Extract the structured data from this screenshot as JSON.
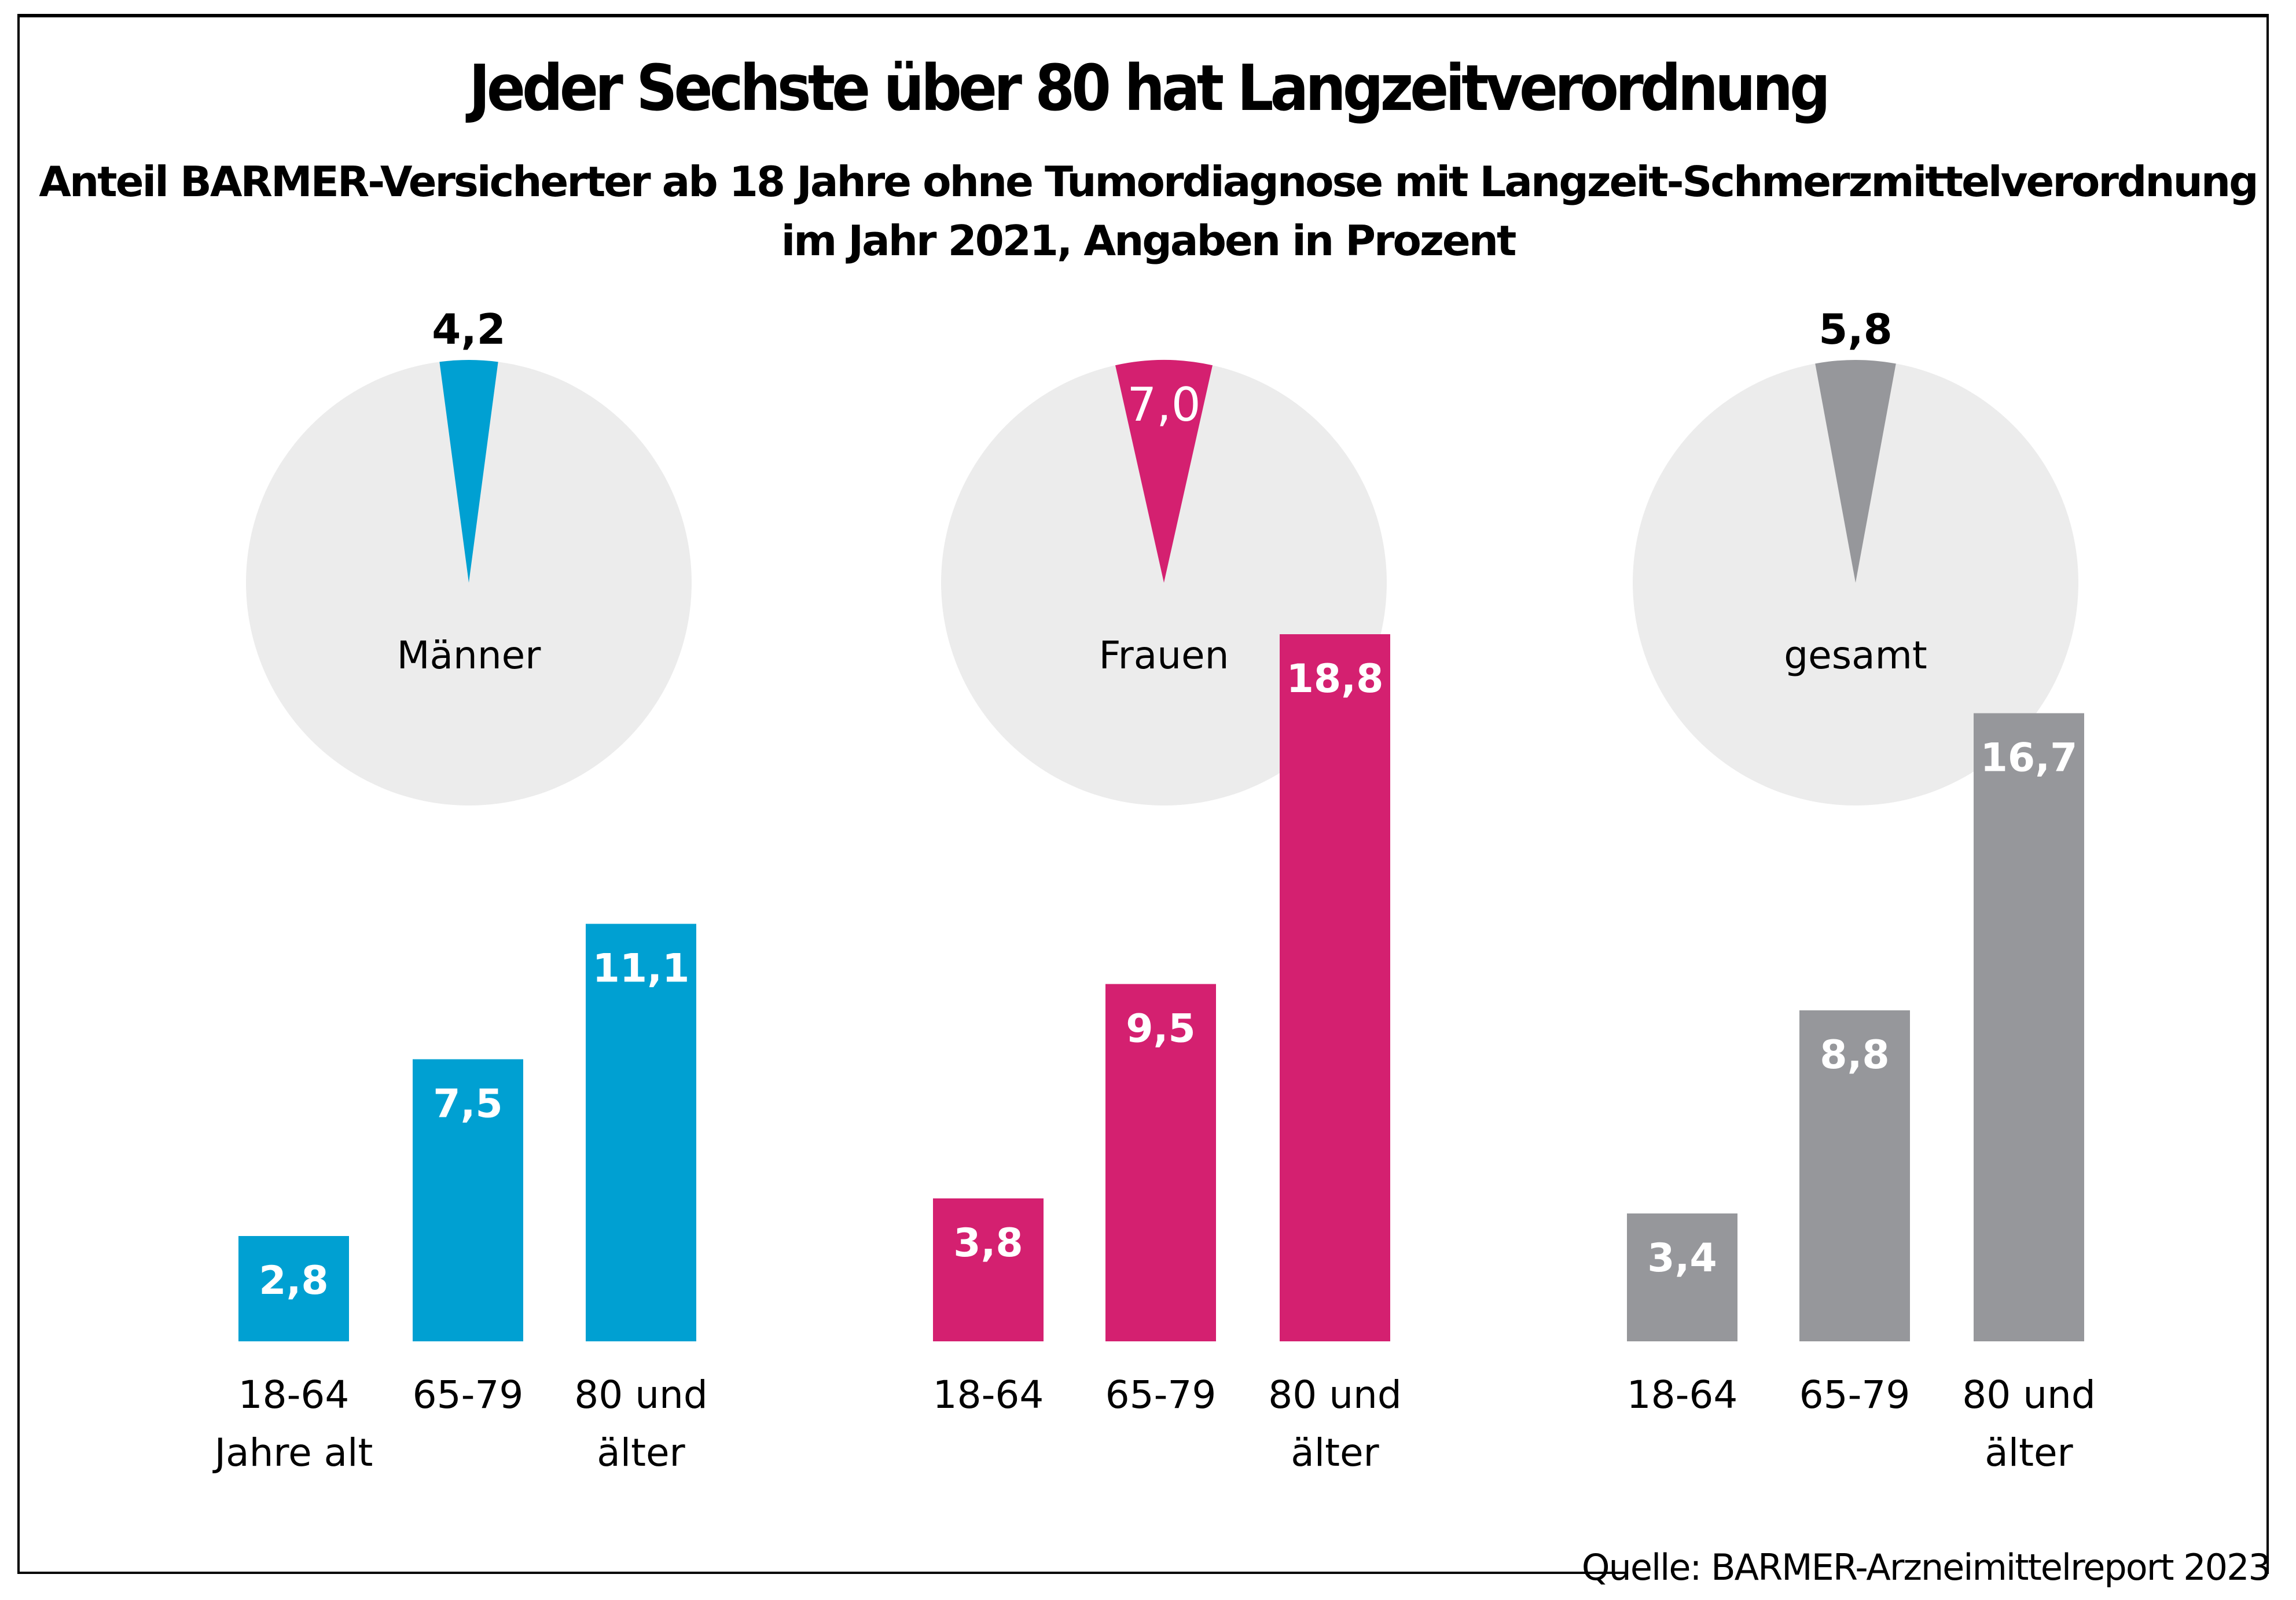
{
  "header": {
    "title": "Jeder Sechste über 80 hat Langzeitverordnung",
    "subtitle_line1": "Anteil BARMER-Versicherter ab 18 Jahre ohne Tumordiagnose mit Langzeit-Schmerzmittelverordnung",
    "subtitle_line2": "im Jahr 2021, Angaben in Prozent"
  },
  "source": "Quelle: BARMER-Arzneimittelreport 2023",
  "chart_data": {
    "type": "bar",
    "title": "Jeder Sechste über 80 hat Langzeitverordnung",
    "subtitle": "Anteil BARMER-Versicherter ab 18 Jahre ohne Tumordiagnose mit Langzeit-Schmerzmittelverordnung im Jahr 2021, Angaben in Prozent",
    "unit": "Prozent",
    "xlabel": "",
    "ylabel": "",
    "ylim": [
      0,
      20
    ],
    "grid": false,
    "groups": [
      {
        "name": "Männer",
        "color": "#00A0D2",
        "pie": {
          "type": "pie",
          "value": 4.2,
          "label": "4,2",
          "label_position": "outside"
        },
        "categories": [
          [
            "18-64",
            "Jahre alt"
          ],
          [
            "65-79"
          ],
          [
            "80 und",
            "älter"
          ]
        ],
        "values": [
          2.8,
          7.5,
          11.1
        ],
        "labels": [
          "2,8",
          "7,5",
          "11,1"
        ]
      },
      {
        "name": "Frauen",
        "color": "#D42070",
        "pie": {
          "type": "pie",
          "value": 7.0,
          "label": "7,0",
          "label_position": "inside"
        },
        "categories": [
          [
            "18-64"
          ],
          [
            "65-79"
          ],
          [
            "80 und",
            "älter"
          ]
        ],
        "values": [
          3.8,
          9.5,
          18.8
        ],
        "labels": [
          "3,8",
          "9,5",
          "18,8"
        ]
      },
      {
        "name": "gesamt",
        "color": "#96979B",
        "pie": {
          "type": "pie",
          "value": 5.8,
          "label": "5,8",
          "label_position": "outside"
        },
        "categories": [
          [
            "18-64"
          ],
          [
            "65-79"
          ],
          [
            "80 und",
            "älter"
          ]
        ],
        "values": [
          3.4,
          8.8,
          16.7
        ],
        "labels": [
          "3,4",
          "8,8",
          "16,7"
        ]
      }
    ],
    "pie_background_color": "#ECECEC"
  }
}
